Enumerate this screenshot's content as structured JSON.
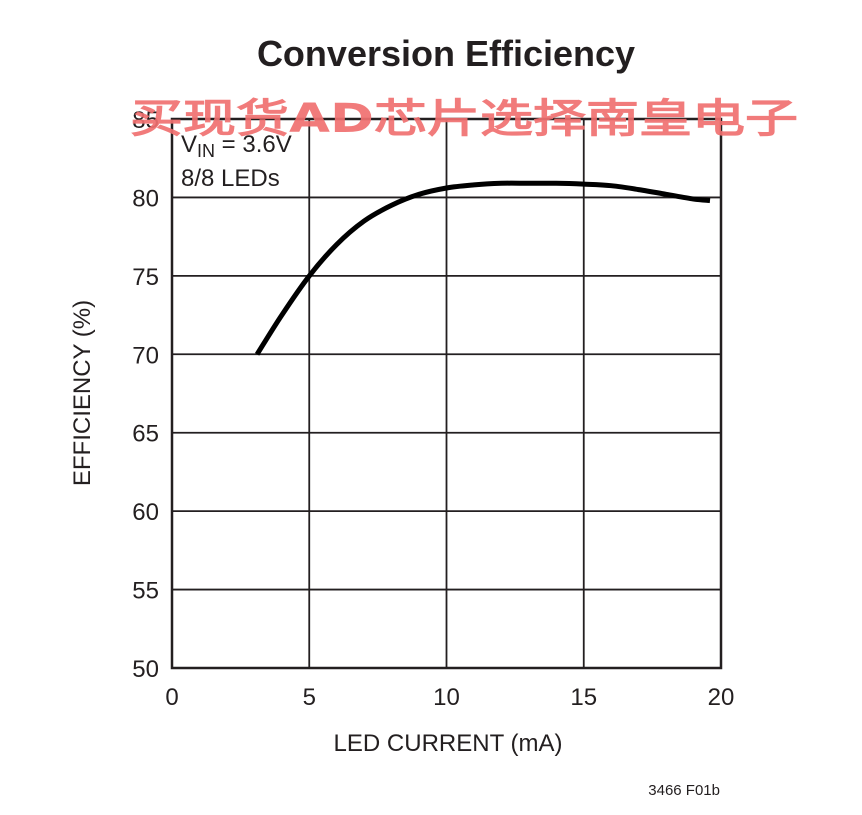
{
  "chart_data": {
    "type": "line",
    "title": "Conversion Efficiency",
    "watermark": "买现货AD芯片选择南皇电子",
    "xlabel": "LED CURRENT (mA)",
    "ylabel": "EFFICIENCY (%)",
    "xlim": [
      0,
      20
    ],
    "ylim": [
      50,
      85
    ],
    "xticks": [
      0,
      5,
      10,
      15,
      20
    ],
    "yticks": [
      50,
      55,
      60,
      65,
      70,
      75,
      80,
      85
    ],
    "grid": true,
    "annotation": {
      "vin_prefix": "V",
      "vin_subscript": "IN",
      "vin_value": " = 3.6V",
      "leds": "8/8 LEDs"
    },
    "figure_id": "3466 F01b",
    "series": [
      {
        "x": [
          3.1,
          4,
          5,
          6,
          7,
          8,
          9,
          10,
          11,
          12,
          13,
          14,
          15,
          16,
          17,
          18,
          19,
          19.6
        ],
        "y": [
          70.0,
          72.5,
          75.0,
          77.0,
          78.5,
          79.5,
          80.2,
          80.6,
          80.8,
          80.9,
          80.9,
          80.9,
          80.85,
          80.75,
          80.5,
          80.2,
          79.9,
          79.8
        ]
      }
    ],
    "colors": {
      "line": "#000000",
      "grid": "#231f20",
      "text": "#231f20",
      "watermark": "#f07070"
    }
  }
}
